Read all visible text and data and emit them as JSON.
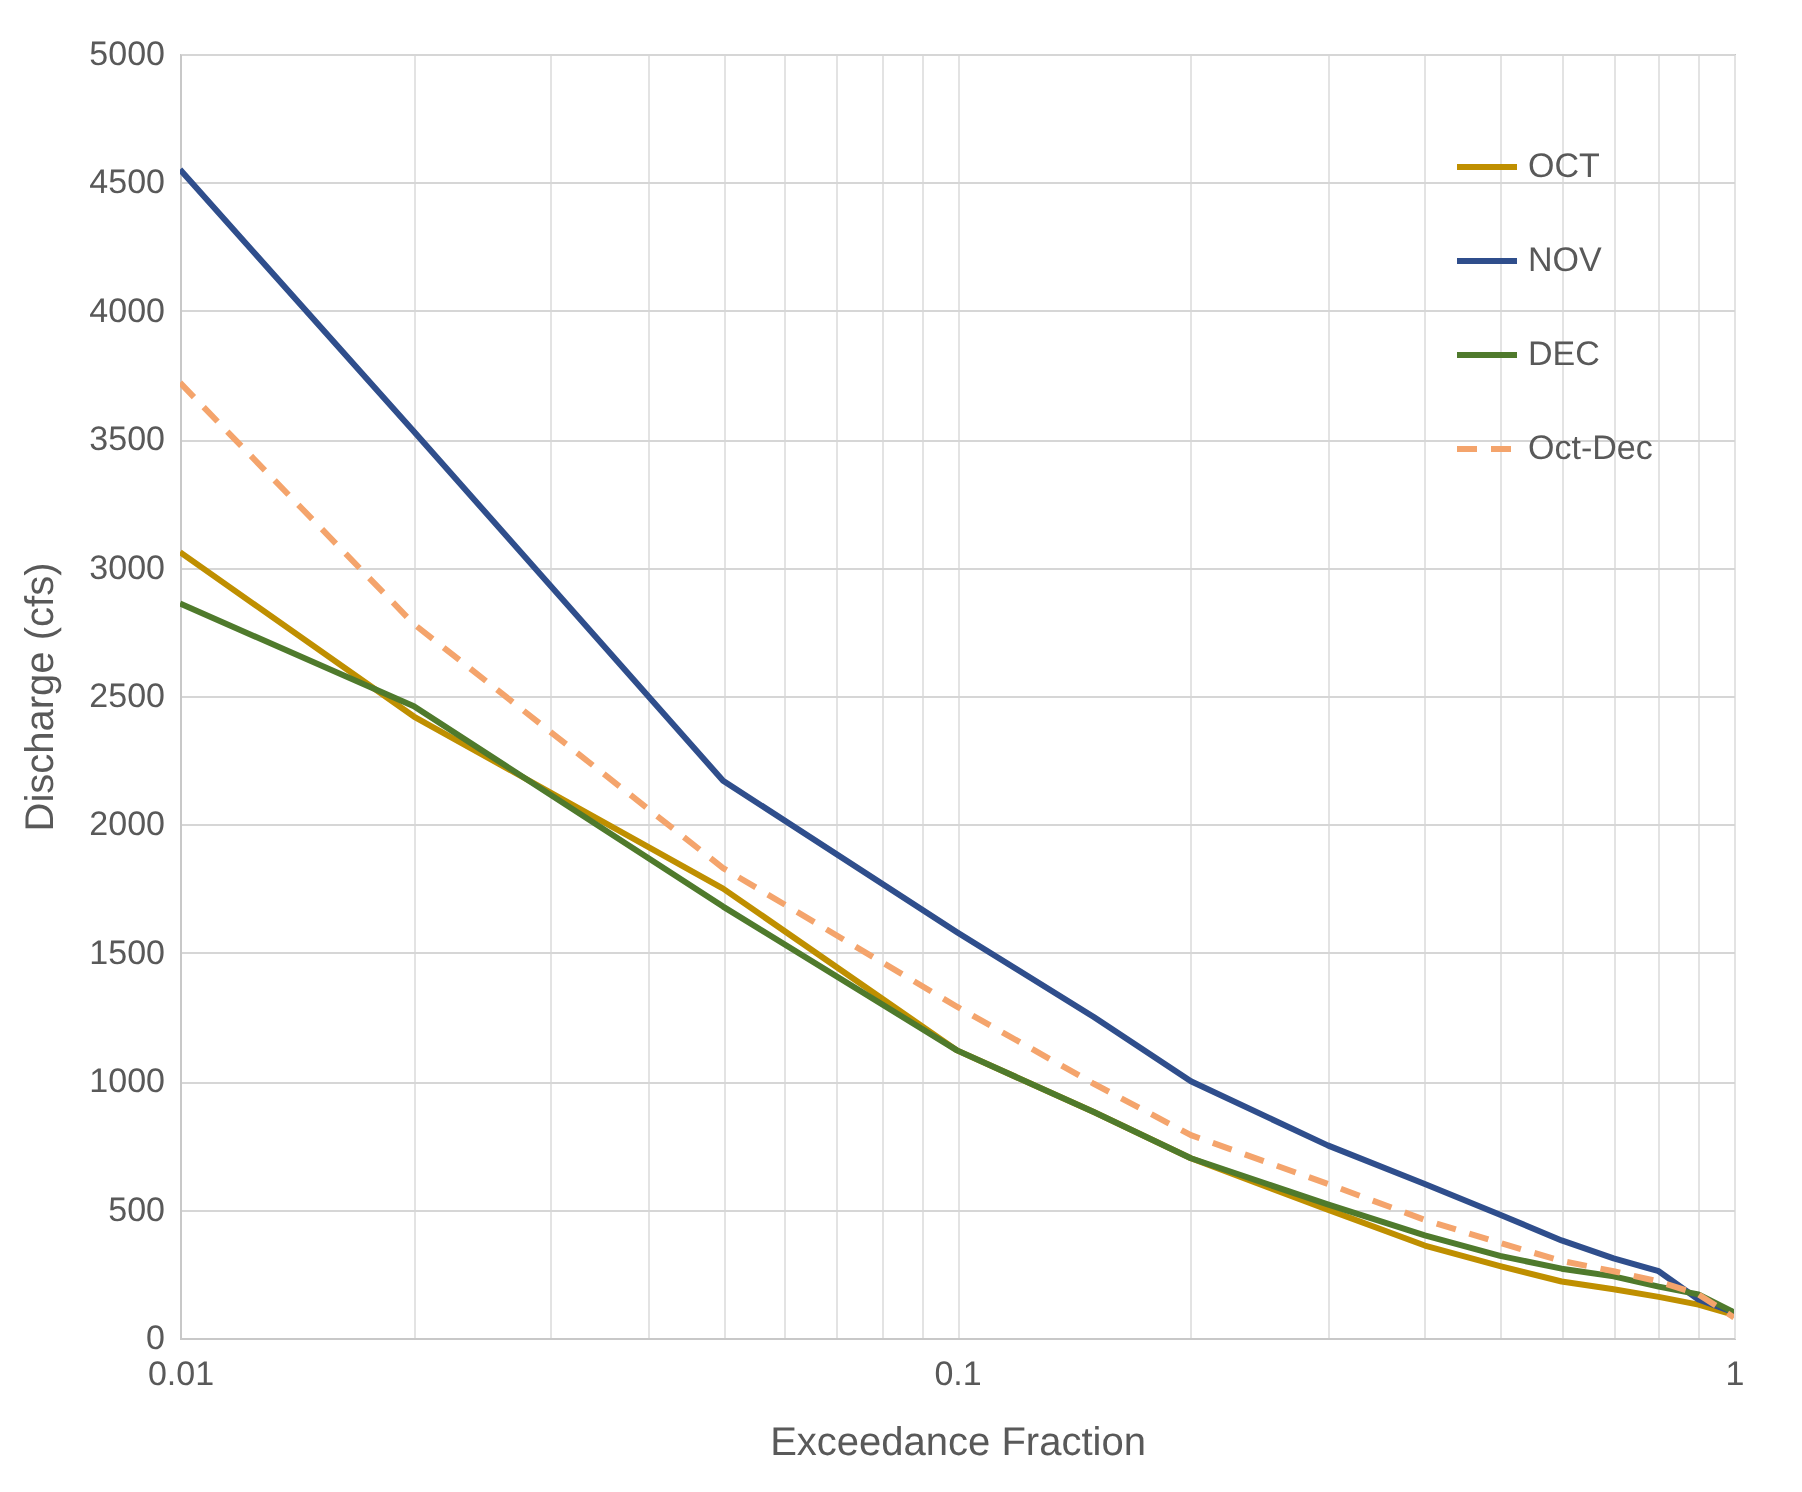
{
  "chart_data": {
    "type": "line",
    "xlabel": "Exceedance Fraction",
    "ylabel": "Discharge (cfs)",
    "log": "x",
    "grid": true,
    "legend": "top right",
    "x": [
      0.01,
      0.02,
      0.05,
      0.1,
      0.15,
      0.2,
      0.3,
      0.4,
      0.5,
      0.6,
      0.7,
      0.8,
      0.9,
      1
    ],
    "xlim": [
      0.01,
      1
    ],
    "xticks": [
      0.01,
      {
        "value": 0.02,
        "label": null
      },
      {
        "value": 0.03,
        "label": null
      },
      {
        "value": 0.04,
        "label": null
      },
      {
        "value": 0.05,
        "label": null
      },
      {
        "value": 0.06,
        "label": null
      },
      {
        "value": 0.07,
        "label": null
      },
      {
        "value": 0.08,
        "label": null
      },
      {
        "value": 0.09,
        "label": null
      },
      0.1,
      {
        "value": 0.2,
        "label": null
      },
      {
        "value": 0.3,
        "label": null
      },
      {
        "value": 0.4,
        "label": null
      },
      {
        "value": 0.5,
        "label": null
      },
      {
        "value": 0.6,
        "label": null
      },
      {
        "value": 0.7,
        "label": null
      },
      {
        "value": 0.8,
        "label": null
      },
      {
        "value": 0.9,
        "label": null
      },
      1
    ],
    "ylim": [
      0,
      5000
    ],
    "yticks": [
      0,
      500,
      1000,
      1500,
      2000,
      2500,
      3000,
      3500,
      4000,
      4500,
      5000
    ],
    "series": [
      {
        "name": "OCT",
        "color": "#bf8f00",
        "line_style": "solid",
        "values": [
          3060,
          2420,
          1750,
          1120,
          880,
          700,
          500,
          360,
          280,
          220,
          190,
          160,
          130,
          90
        ]
      },
      {
        "name": "NOV",
        "color": "#2f4e8c",
        "line_style": "solid",
        "values": [
          4550,
          3530,
          2170,
          1580,
          1250,
          1000,
          750,
          600,
          480,
          380,
          310,
          260,
          150,
          100
        ]
      },
      {
        "name": "DEC",
        "color": "#4f7a2c",
        "line_style": "solid",
        "values": [
          2860,
          2460,
          1680,
          1120,
          880,
          700,
          520,
          400,
          320,
          270,
          240,
          200,
          170,
          100
        ]
      },
      {
        "name": "Oct-Dec",
        "color": "#f4a46c",
        "line_style": "dashed",
        "values": [
          3720,
          2780,
          1830,
          1290,
          990,
          790,
          600,
          460,
          370,
          300,
          260,
          220,
          170,
          80
        ]
      }
    ]
  }
}
